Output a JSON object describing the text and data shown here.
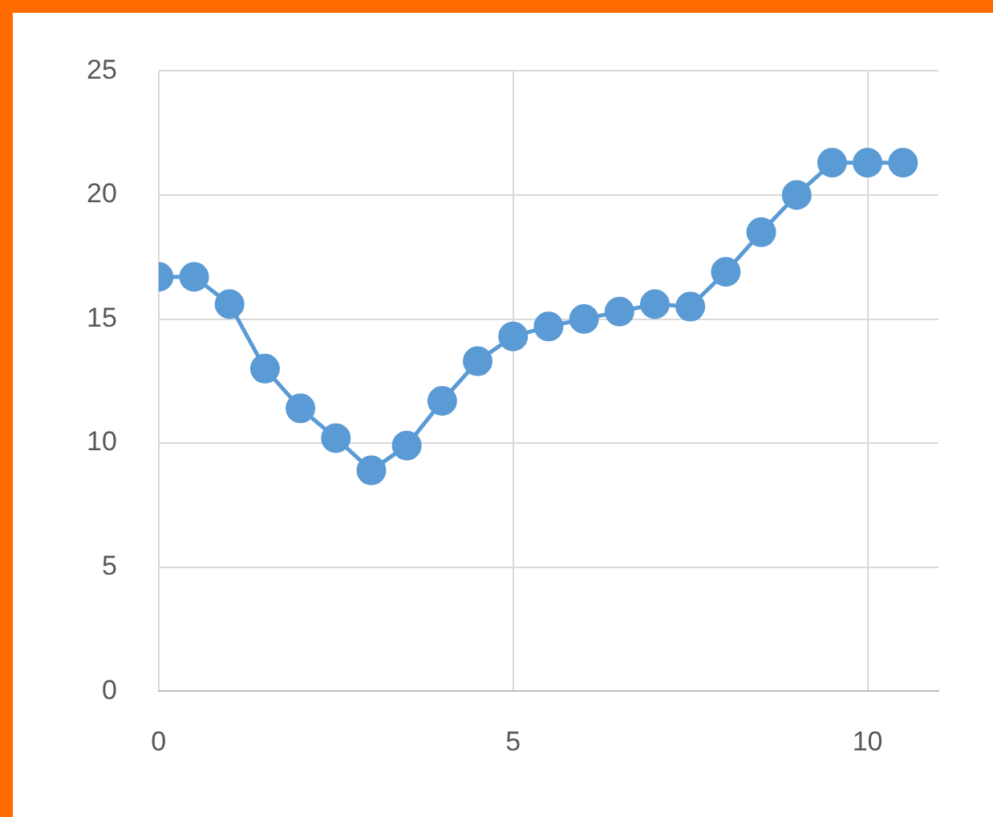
{
  "chart_data": {
    "type": "line",
    "x": [
      0,
      0.5,
      1,
      1.5,
      2,
      2.5,
      3,
      3.5,
      4,
      4.5,
      5,
      5.5,
      6,
      6.5,
      7,
      7.5,
      8,
      8.5,
      9,
      9.5,
      10,
      10.5
    ],
    "series": [
      {
        "color": "#5b9bd5",
        "values": [
          16.7,
          16.7,
          15.6,
          13.0,
          11.4,
          10.2,
          8.9,
          9.9,
          11.7,
          13.3,
          14.3,
          14.7,
          15.0,
          15.3,
          15.6,
          15.5,
          16.9,
          18.5,
          20.0,
          21.3,
          21.3,
          21.3
        ]
      }
    ],
    "xlim": [
      0,
      11
    ],
    "xticks": [
      0,
      5,
      10
    ],
    "ylim": [
      0,
      25
    ],
    "yticks": [
      0,
      5,
      10,
      15,
      20,
      25
    ],
    "grid": true,
    "legend": false,
    "marker": "circle",
    "line_style": "solid"
  }
}
